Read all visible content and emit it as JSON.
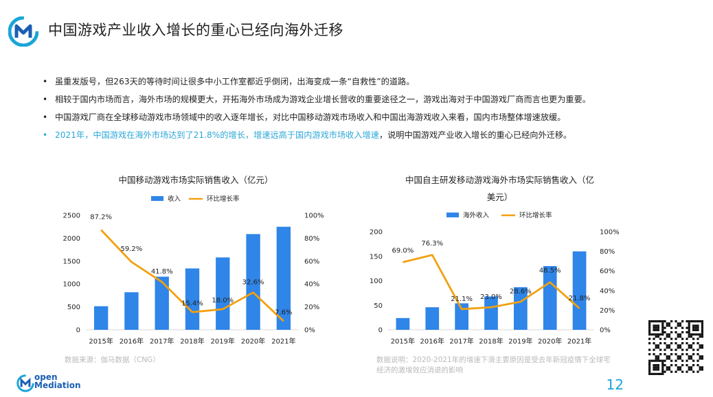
{
  "header": {
    "title": "中国游戏产业收入增长的重心已经向海外迁移"
  },
  "bullets": [
    {
      "dot": "•",
      "text": "虽重发版号，但263天的等待时间让很多中小工作室都近乎倒闭，出海变成一条“自救性”的道路。"
    },
    {
      "dot": "•",
      "text": "相较于国内市场而言，海外市场的规模更大，开拓海外市场成为游戏企业增长营收的重要途径之一，游戏出海对于中国游戏厂商而言也更为重要。"
    },
    {
      "dot": "•",
      "text": "中国游戏厂商在全球移动游戏市场领域中的收入逐年增长，对比中国移动游戏市场收入和中国出海游戏收入来看，国内市场整体增速放缓。"
    },
    {
      "dot": "•",
      "text_a": "2021年，中国游戏在海外市场达到了21.8%的增长，增速远高于国内游戏市场收入增速",
      "text_b": "，说明中国游戏产业收入增长的重心已经向外迁移。"
    }
  ],
  "colors": {
    "bar": "#2f85e8",
    "line": "#f2a00f",
    "accent": "#1aa5d8",
    "note": "#b9b9b9"
  },
  "chart_data": [
    {
      "type": "bar",
      "title": "中国移动游戏市场实际销售收入（亿元）",
      "categories": [
        "2015年",
        "2016年",
        "2017年",
        "2018年",
        "2019年",
        "2020年",
        "2021年"
      ],
      "series": [
        {
          "name": "收入",
          "type": "bar",
          "axis": "left",
          "values": [
            515,
            820,
            1160,
            1340,
            1580,
            2090,
            2250
          ]
        },
        {
          "name": "环比增长率",
          "type": "line",
          "axis": "right",
          "values": [
            87.2,
            59.2,
            41.8,
            15.4,
            18.0,
            32.6,
            7.6
          ],
          "labels": [
            "87.2%",
            "59.2%",
            "41.8%",
            "15.4%",
            "18.0%",
            "32.6%",
            "7.6%"
          ]
        }
      ],
      "y_left": {
        "ticks": [
          "0",
          "500",
          "1000",
          "1500",
          "2000",
          "2500"
        ],
        "range": [
          0,
          2500
        ]
      },
      "y_right": {
        "ticks": [
          "0%",
          "20%",
          "40%",
          "60%",
          "80%",
          "100%"
        ],
        "range": [
          0,
          100
        ]
      },
      "note": "数据来源：伽马数据（CNG）"
    },
    {
      "type": "bar",
      "title_l1": "中国自主研发移动游戏海外市场实际销售收入（亿",
      "title_l2": "美元）",
      "categories": [
        "2015年",
        "2016年",
        "2017年",
        "2018年",
        "2019年",
        "2020年",
        "2021年"
      ],
      "series": [
        {
          "name": "海外收入",
          "type": "bar",
          "axis": "left",
          "values": [
            24,
            46,
            54,
            68,
            87,
            130,
            160
          ]
        },
        {
          "name": "环比增长率",
          "type": "line",
          "axis": "right",
          "values": [
            69.0,
            76.3,
            21.1,
            23.0,
            28.6,
            48.5,
            21.8
          ],
          "labels": [
            "69.0%",
            "76.3%",
            "21.1%",
            "23.0%",
            "28.6%",
            "48.5%",
            "21.8%"
          ]
        }
      ],
      "y_left": {
        "ticks": [
          "0",
          "50",
          "100",
          "150",
          "200"
        ],
        "range": [
          0,
          200
        ]
      },
      "y_right": {
        "ticks": [
          "0%",
          "20%",
          "40%",
          "60%",
          "80%",
          "100%"
        ],
        "range": [
          0,
          100
        ]
      },
      "note_l1": "数据说明：2020-2021年的增速下滑主要原因是受去年新冠疫情下全球宅",
      "note_l2": "经济的激增效应消退的影响"
    }
  ],
  "footer": {
    "page_number": "12",
    "logo_line1": "open",
    "logo_line2": "Mediation"
  }
}
